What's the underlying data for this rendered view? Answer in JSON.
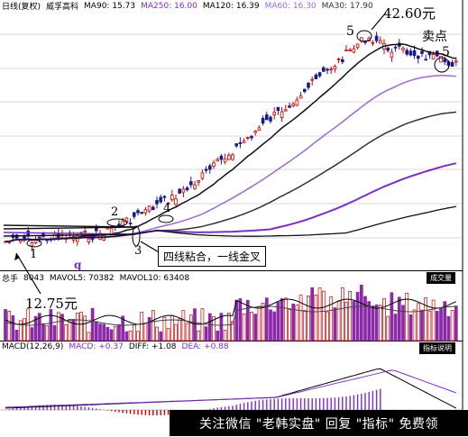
{
  "price_header": {
    "name": "日线(复权)",
    "stock": "威孚高科",
    "ma90": "MA90: 15.73",
    "ma250": "MA250: 16.00",
    "ma120": "MA120: 16.39",
    "ma60": "MA60: 16.30",
    "ma30": "MA30: 17.90"
  },
  "volume_header": {
    "label": "成交量",
    "prefix": "总手",
    "value": "8043",
    "mavol5": "MAVOL5: 70382",
    "mavol10": "MAVOL10: 63408"
  },
  "macd_header": {
    "label": "指标说明",
    "macd": "MACD(12,26,9)",
    "macd_val": "MACD: +0.37",
    "diff": "DIFF: +1.08",
    "dea": "DEA: +0.88"
  },
  "annotations": {
    "high_price": "42.60元",
    "low_price": "12.75元",
    "sell_point": "卖点",
    "callout": "四线粘合，一线金叉",
    "n1": "1",
    "n2": "2",
    "n3": "3",
    "n4": "4",
    "n5a": "5",
    "n5b": "5",
    "q": "q"
  },
  "watermark": {
    "text": "关注微信 \"老韩实盘\" 回复 \"指标\" 免费领"
  },
  "colors": {
    "up": "#cc0000",
    "down": "#1a1a8c",
    "ma_black": "#111111",
    "ma_purple": "#7b2ec8",
    "ma_violet": "#9b6ad6",
    "ma_dark": "#333333",
    "volume_purple": "#8a2aa8",
    "grid": "#d8d8d8"
  },
  "chart_data": {
    "type": "line",
    "series_price": "candlestick",
    "start_price": 12.75,
    "peak_price": 42.6,
    "markers": [
      "1",
      "2",
      "3",
      "4",
      "5",
      "5"
    ]
  }
}
